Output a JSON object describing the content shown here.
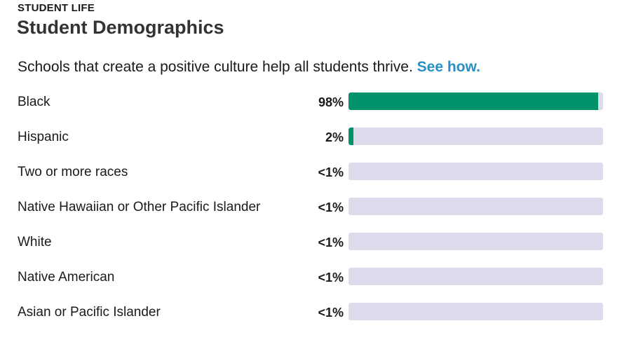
{
  "section": {
    "eyebrow": "STUDENT LIFE",
    "title": "Student Demographics",
    "intro_text": "Schools that create a positive culture help all students thrive.",
    "intro_link": "See how."
  },
  "colors": {
    "bar_fill": "#00936a",
    "bar_track": "#dcdcec",
    "link": "#2a8fc4"
  },
  "demographics": [
    {
      "label": "Black",
      "value_text": "98%",
      "percent": 98
    },
    {
      "label": "Hispanic",
      "value_text": "2%",
      "percent": 2
    },
    {
      "label": "Two or more races",
      "value_text": "<1%",
      "percent": 0
    },
    {
      "label": "Native Hawaiian or Other Pacific Islander",
      "value_text": "<1%",
      "percent": 0
    },
    {
      "label": "White",
      "value_text": "<1%",
      "percent": 0
    },
    {
      "label": "Native American",
      "value_text": "<1%",
      "percent": 0
    },
    {
      "label": "Asian or Pacific Islander",
      "value_text": "<1%",
      "percent": 0
    }
  ]
}
